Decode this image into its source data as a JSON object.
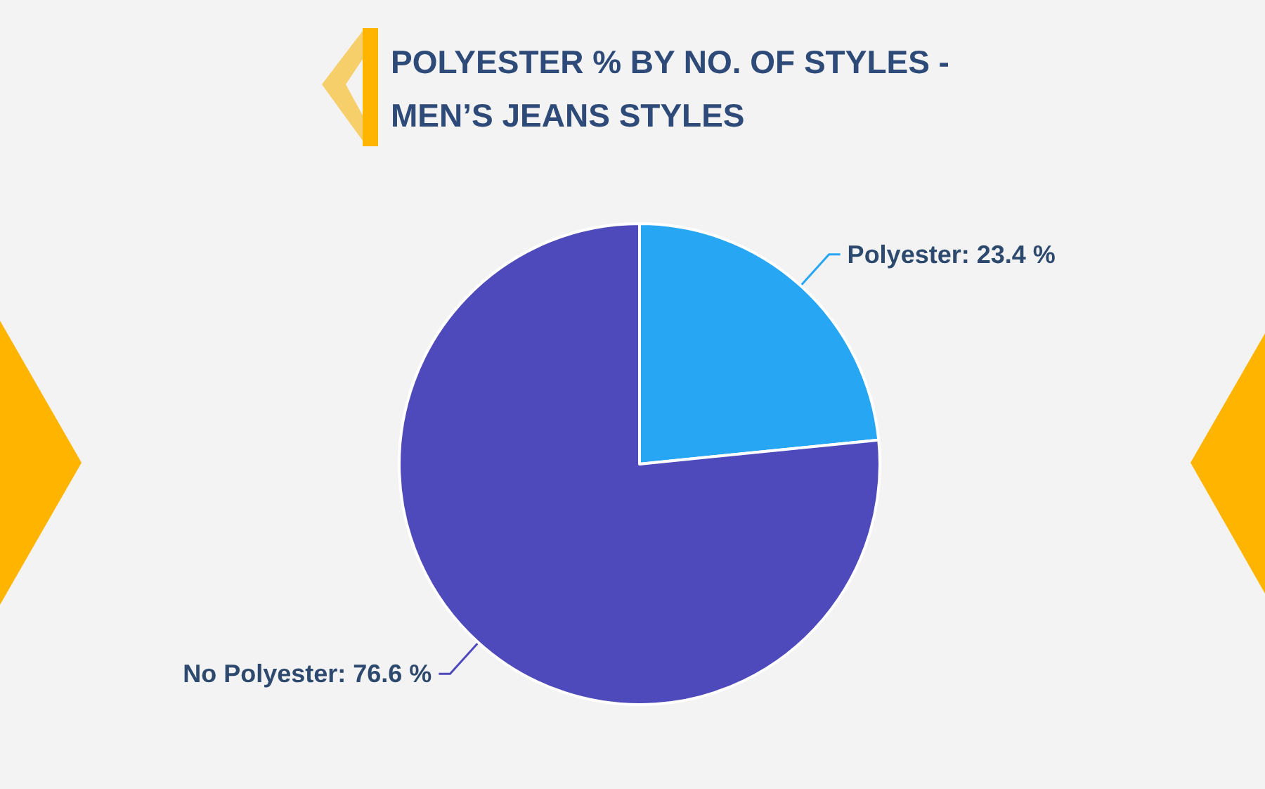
{
  "chart_data": {
    "type": "pie",
    "title": "POLYESTER % BY NO. OF STYLES - MEN’S JEANS STYLES",
    "categories": [
      "Polyester",
      "No Polyester"
    ],
    "values": [
      23.4,
      76.6
    ],
    "colors": [
      "#27a6f4",
      "#4f4abb"
    ],
    "value_labels": [
      "23.4 %",
      "76.6 %"
    ]
  }
}
